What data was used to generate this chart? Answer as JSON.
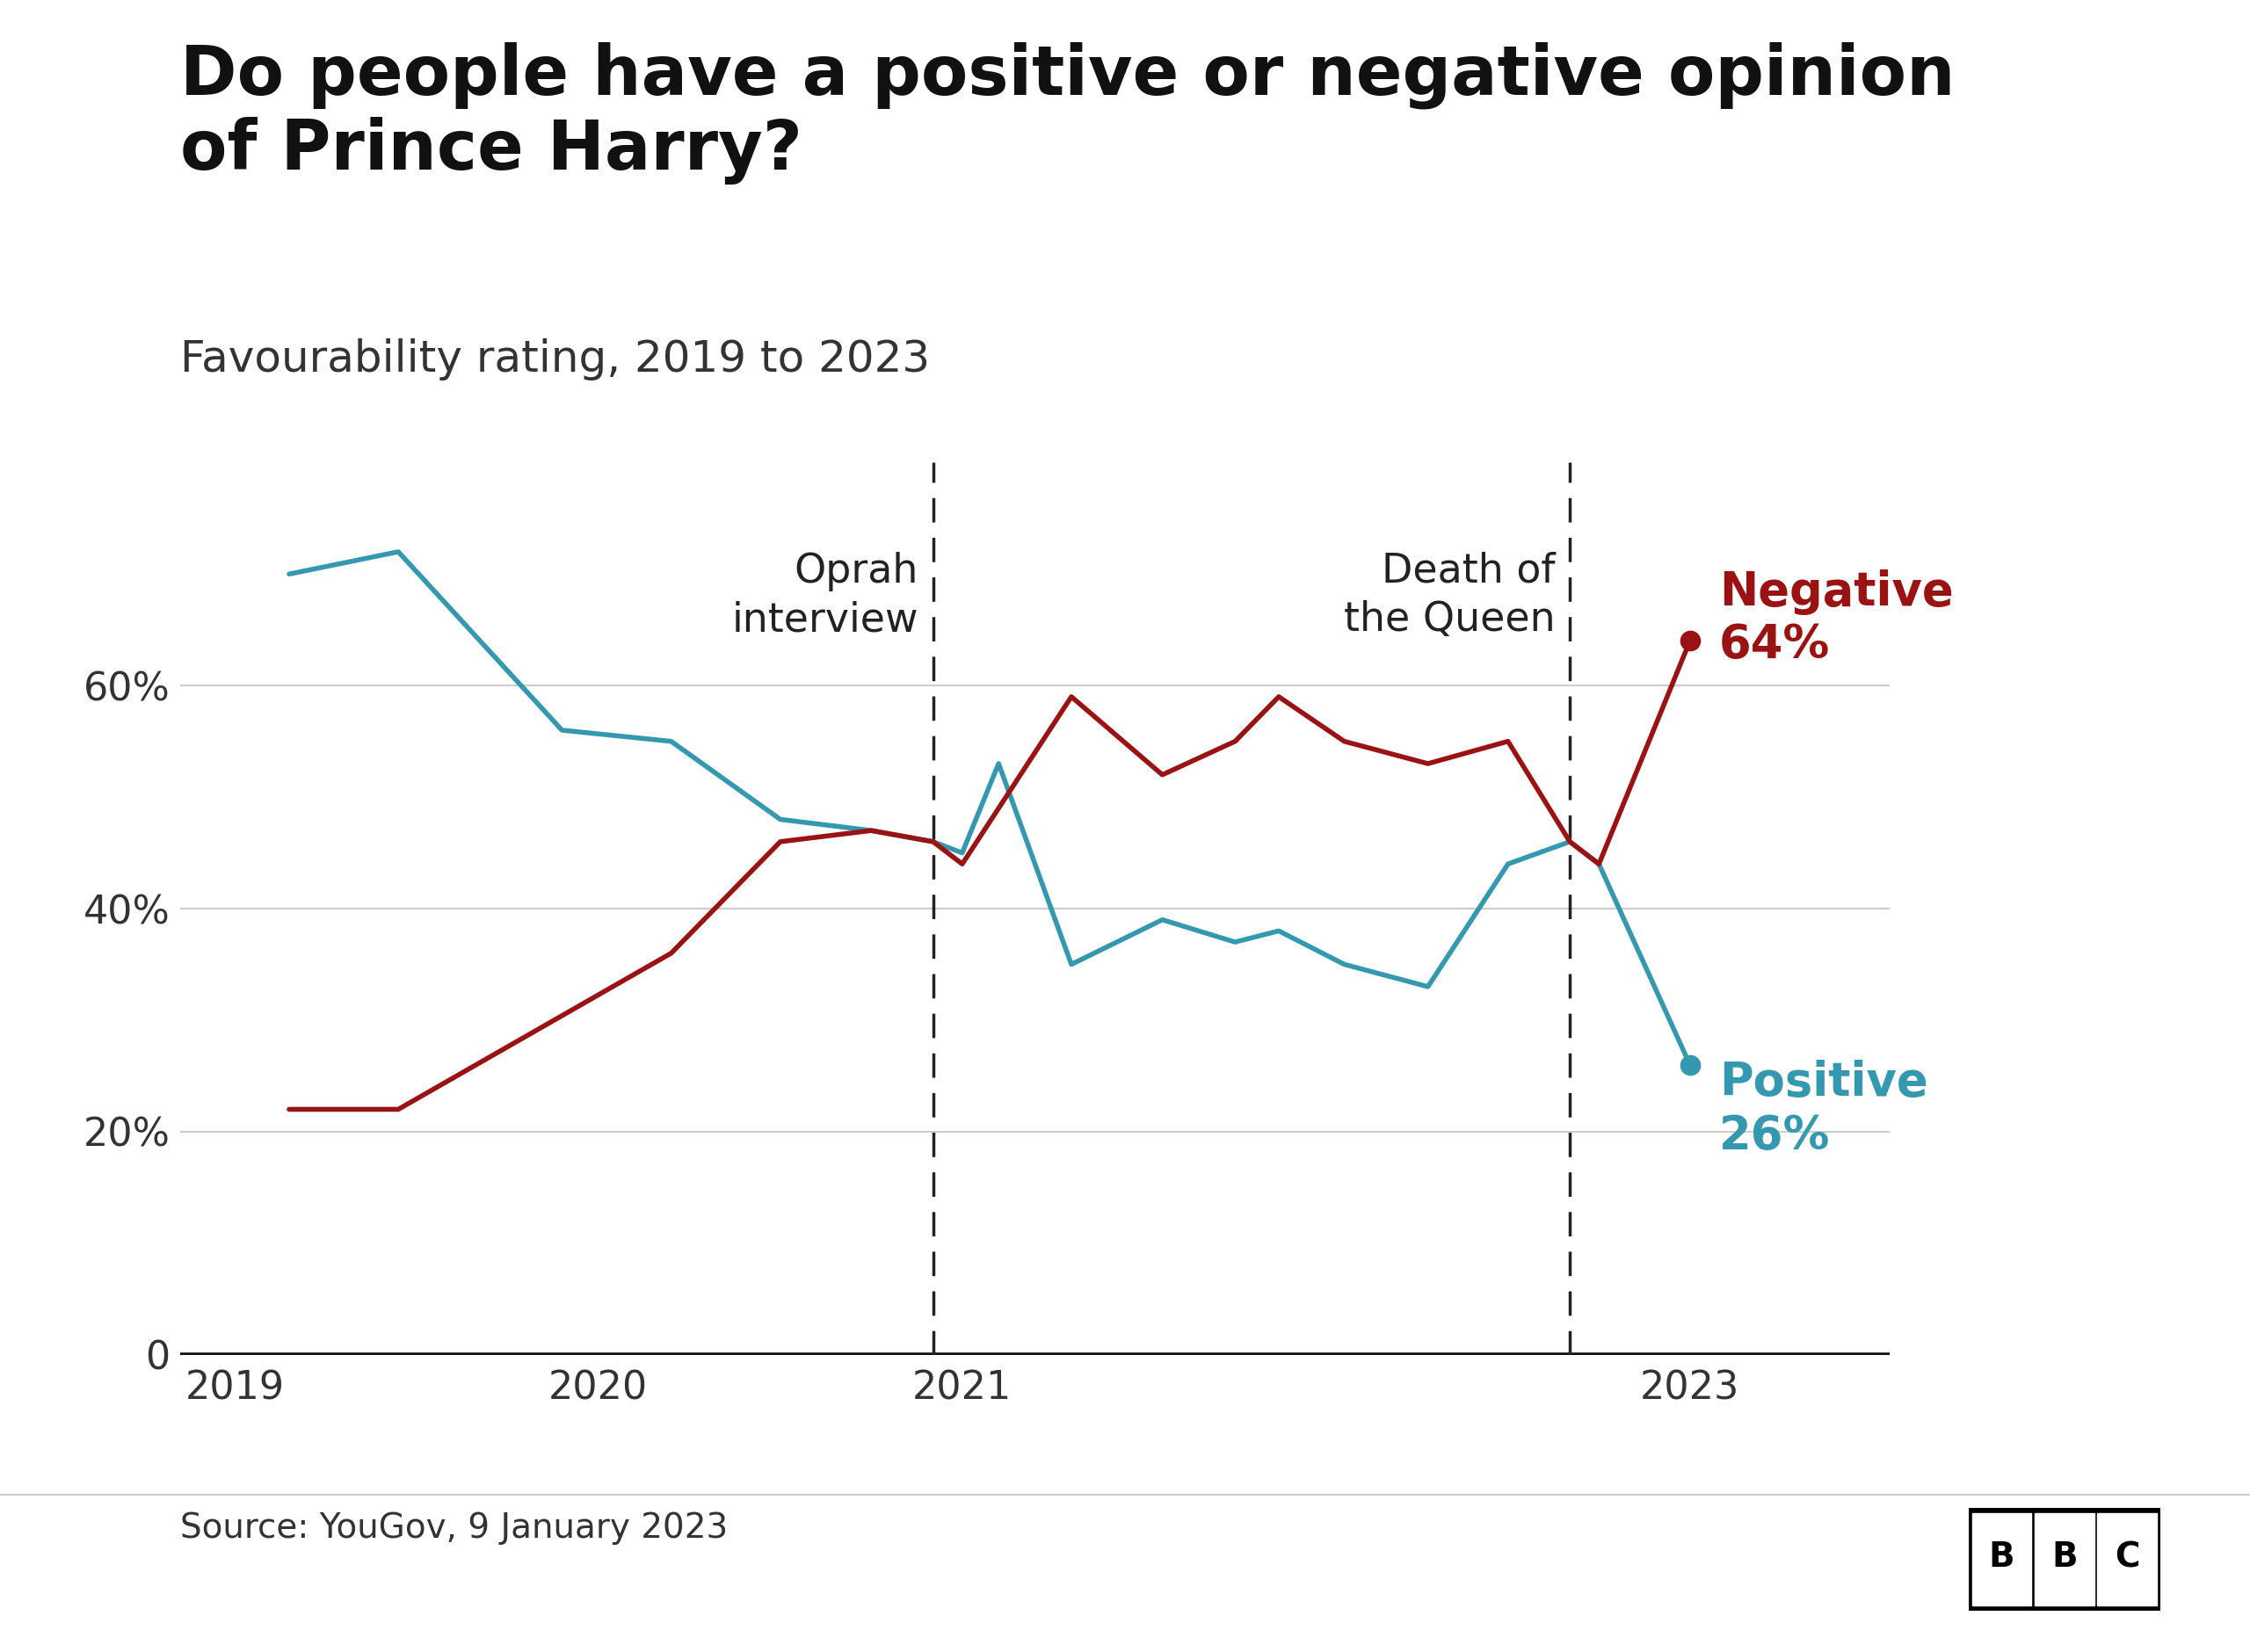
{
  "title": "Do people have a positive or negative opinion\nof Prince Harry?",
  "subtitle": "Favourability rating, 2019 to 2023",
  "positive_x": [
    2019.15,
    2019.45,
    2019.9,
    2020.2,
    2020.5,
    2020.75,
    2020.92,
    2021.0,
    2021.1,
    2021.3,
    2021.55,
    2021.75,
    2021.87,
    2022.05,
    2022.28,
    2022.5,
    2022.67,
    2022.75,
    2023.0
  ],
  "positive_y": [
    70,
    72,
    56,
    55,
    48,
    47,
    46,
    45,
    53,
    35,
    39,
    37,
    38,
    35,
    33,
    44,
    46,
    44,
    26
  ],
  "negative_x": [
    2019.15,
    2019.45,
    2020.2,
    2020.5,
    2020.75,
    2020.92,
    2021.0,
    2021.1,
    2021.3,
    2021.55,
    2021.75,
    2021.87,
    2022.05,
    2022.28,
    2022.5,
    2022.67,
    2022.75,
    2023.0
  ],
  "negative_y": [
    22,
    22,
    36,
    46,
    47,
    46,
    44,
    49,
    59,
    52,
    55,
    59,
    55,
    53,
    55,
    46,
    44,
    64
  ],
  "positive_color": "#3498b0",
  "negative_color": "#9b1212",
  "oprah_x": 2020.92,
  "queen_x": 2022.67,
  "ylim": [
    0,
    80
  ],
  "yticks": [
    0,
    20,
    40,
    60
  ],
  "ytick_labels": [
    "0",
    "20%",
    "40%",
    "60%"
  ],
  "xticks": [
    2019,
    2020,
    2021,
    2023
  ],
  "xlim_left": 2018.85,
  "xlim_right": 2023.55,
  "source_text": "Source: YouGov, 9 January 2023",
  "background_color": "#ffffff",
  "grid_color": "#cccccc",
  "line_width": 4.0,
  "title_fontsize": 56,
  "subtitle_fontsize": 36,
  "tick_fontsize": 32,
  "annotation_fontsize": 33,
  "label_fontsize": 38,
  "source_fontsize": 28
}
